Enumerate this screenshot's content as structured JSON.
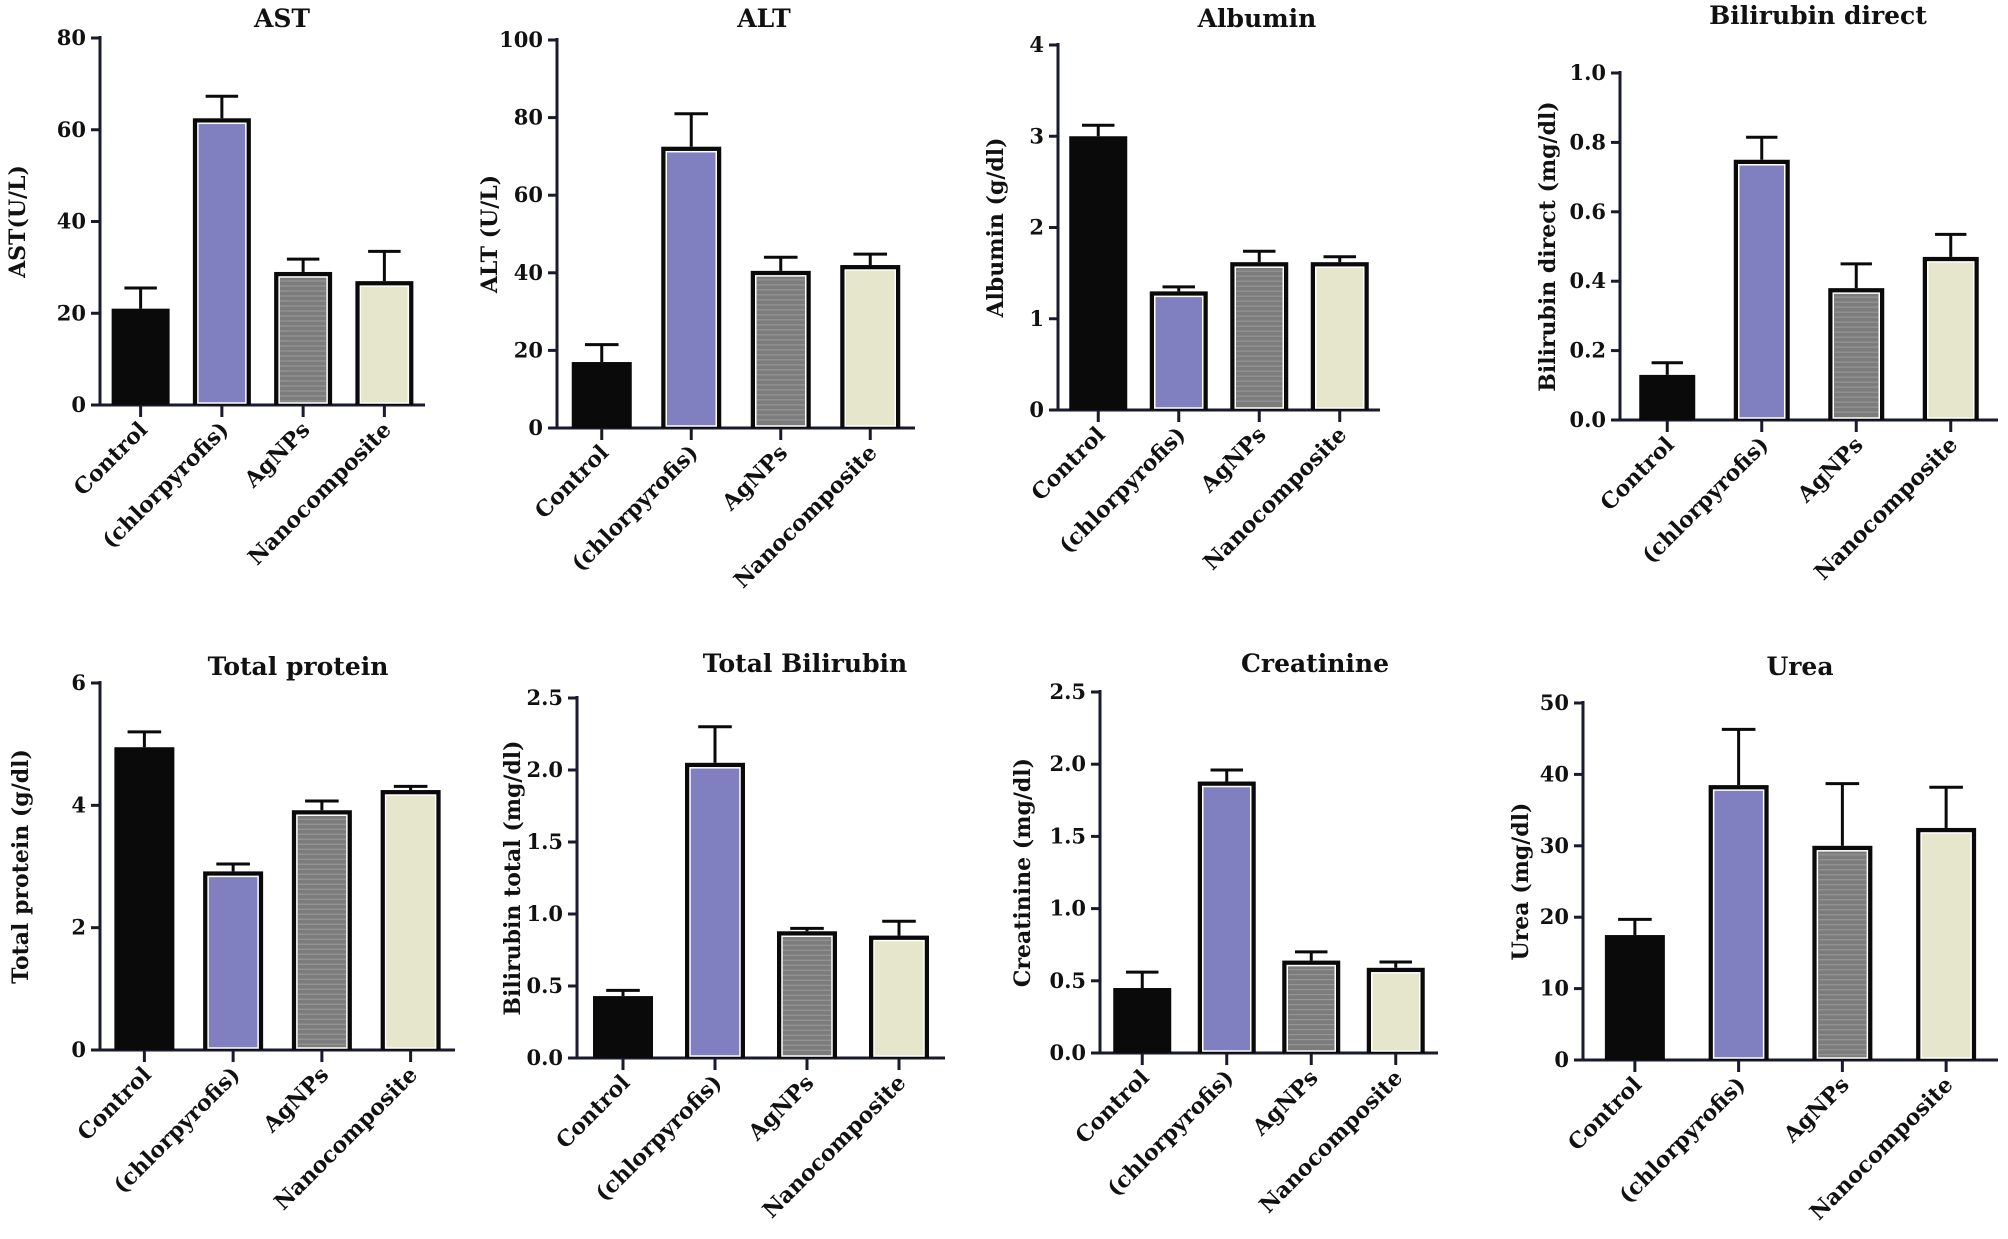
{
  "colors": {
    "axis": "#1a1a2e",
    "bar_outline": "#0a0a0a",
    "fills": [
      "#0a0a0a",
      "#8080c0",
      "#7c7c7c",
      "#e6e6cc"
    ]
  },
  "chart_data": [
    {
      "type": "bar",
      "title": "AST",
      "ylabel": "AST(U/L)",
      "categories": [
        "Control",
        "(chlorpyrofis)",
        "AgNPs",
        "Nanocomposite"
      ],
      "values": [
        21,
        62.5,
        29,
        27
      ],
      "errors": [
        4.5,
        4.8,
        2.8,
        6.5
      ],
      "ylim": [
        0,
        80
      ],
      "ticks": [
        "0",
        "20",
        "40",
        "60",
        "80"
      ]
    },
    {
      "type": "bar",
      "title": "ALT",
      "ylabel": "ALT  (U/L)",
      "categories": [
        "Control",
        "(chlorpyrofis)",
        "AgNPs",
        "Nanocomposite"
      ],
      "values": [
        17,
        72.5,
        40.5,
        42
      ],
      "errors": [
        4.5,
        8.5,
        3.5,
        2.8
      ],
      "ylim": [
        0,
        100
      ],
      "ticks": [
        "0",
        "20",
        "40",
        "60",
        "80",
        "100"
      ]
    },
    {
      "type": "bar",
      "title": "Albumin",
      "ylabel": "Albumin (g/dl)",
      "categories": [
        "Control",
        "(chlorpyrofis)",
        "AgNPs",
        "Nanocomposite"
      ],
      "values": [
        3.0,
        1.3,
        1.62,
        1.62
      ],
      "errors": [
        0.12,
        0.05,
        0.12,
        0.06
      ],
      "ylim": [
        0,
        4
      ],
      "ticks": [
        "0",
        "1",
        "2",
        "3",
        "4"
      ]
    },
    {
      "type": "bar",
      "title": "Bilirubin direct",
      "ylabel": "Bilirubin direct (mg/dl)",
      "categories": [
        "Control",
        "(chlorpyrofis)",
        "AgNPs",
        "Nanocomposite"
      ],
      "values": [
        0.13,
        0.75,
        0.38,
        0.47
      ],
      "errors": [
        0.035,
        0.065,
        0.07,
        0.065
      ],
      "ylim": [
        0,
        1.0
      ],
      "ticks": [
        "0.0",
        "0.2",
        "0.4",
        "0.6",
        "0.8",
        "1.0"
      ]
    },
    {
      "type": "bar",
      "title": "Total protein",
      "ylabel": "Total protein (g/dl)",
      "categories": [
        "Control",
        "(chlorpyrofis)",
        "AgNPs",
        "Nanocomposite"
      ],
      "values": [
        4.95,
        2.92,
        3.92,
        4.25
      ],
      "errors": [
        0.25,
        0.12,
        0.15,
        0.06
      ],
      "ylim": [
        0,
        6
      ],
      "ticks": [
        "0",
        "2",
        "4",
        "6"
      ]
    },
    {
      "type": "bar",
      "title": "Total Bilirubin",
      "ylabel": "Bilirubin total (mg/dl)",
      "categories": [
        "Control",
        "(chlorpyrofis)",
        "AgNPs",
        "Nanocomposite"
      ],
      "values": [
        0.43,
        2.05,
        0.88,
        0.85
      ],
      "errors": [
        0.04,
        0.25,
        0.02,
        0.1
      ],
      "ylim": [
        0,
        2.5
      ],
      "ticks": [
        "0.0",
        "0.5",
        "1.0",
        "1.5",
        "2.0",
        "2.5"
      ]
    },
    {
      "type": "bar",
      "title": "Creatinine",
      "ylabel": "Creatinine (mg/dl)",
      "categories": [
        "Control",
        "(chlorpyrofis)",
        "AgNPs",
        "Nanocomposite"
      ],
      "values": [
        0.45,
        1.88,
        0.64,
        0.59
      ],
      "errors": [
        0.11,
        0.08,
        0.06,
        0.04
      ],
      "ylim": [
        0,
        2.5
      ],
      "ticks": [
        "0.0",
        "0.5",
        "1.0",
        "1.5",
        "2.0",
        "2.5"
      ]
    },
    {
      "type": "bar",
      "title": "Urea",
      "ylabel": "Urea (mg/dl)",
      "categories": [
        "Control",
        "(chlorpyrofis)",
        "AgNPs",
        "Nanocomposite"
      ],
      "values": [
        17.5,
        38.5,
        30,
        32.5
      ],
      "errors": [
        2.2,
        7.8,
        8.7,
        5.7
      ],
      "ylim": [
        0,
        50
      ],
      "ticks": [
        "0",
        "10",
        "20",
        "30",
        "40",
        "50"
      ]
    }
  ]
}
